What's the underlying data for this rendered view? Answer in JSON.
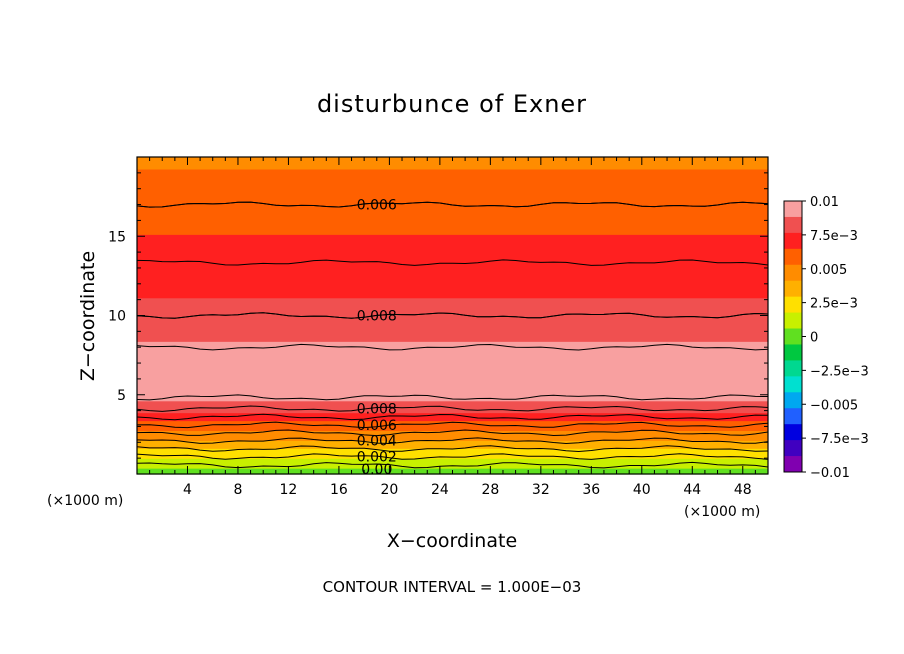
{
  "chart_data": {
    "type": "heatmap",
    "title": "disturbunce of Exner",
    "xlabel": "X−coordinate",
    "ylabel": "Z−coordinate",
    "x_unit_left": "(×1000 m)",
    "x_unit_right": "(×1000 m)",
    "xlim": [
      0,
      50
    ],
    "ylim": [
      0,
      20
    ],
    "x_ticks": [
      4,
      8,
      12,
      16,
      20,
      24,
      28,
      32,
      36,
      40,
      44,
      48
    ],
    "y_ticks": [
      5,
      10,
      15
    ],
    "colorbar": {
      "labels": [
        "0.01",
        "7.5e−3",
        "0.005",
        "2.5e−3",
        "0",
        "−2.5e−3",
        "−0.005",
        "−7.5e−3",
        "−0.01"
      ],
      "range": [
        -0.01,
        0.01
      ],
      "colors": [
        "#f8a0a0",
        "#f05050",
        "#ff2020",
        "#ff6000",
        "#ff8c00",
        "#ffb000",
        "#ffe000",
        "#c8f000",
        "#60e020",
        "#00c840",
        "#00d890",
        "#00e0d0",
        "#00a8f0",
        "#2060ff",
        "#0000e0",
        "#4000c0",
        "#8000b0"
      ]
    },
    "contour_labels": [
      "0.006",
      "0.008",
      "0.008",
      "0.006",
      "0.004",
      "0.002",
      "0.00"
    ],
    "contour_interval_text": "CONTOUR INTERVAL = 1.000E−03",
    "profile_vs_height": {
      "z": [
        0,
        0.5,
        1,
        1.5,
        2,
        2.5,
        3,
        3.5,
        4,
        4.5,
        5,
        6,
        7,
        8,
        9,
        10,
        11,
        12,
        13,
        14,
        15,
        16,
        17,
        18,
        19,
        20
      ],
      "value": [
        0.0,
        0.0009,
        0.0018,
        0.0028,
        0.0038,
        0.0048,
        0.0058,
        0.0068,
        0.0078,
        0.0086,
        0.0092,
        0.0096,
        0.0095,
        0.009,
        0.0085,
        0.008,
        0.0077,
        0.0074,
        0.0071,
        0.0068,
        0.0065,
        0.0062,
        0.006,
        0.0057,
        0.0054,
        0.005
      ]
    }
  }
}
